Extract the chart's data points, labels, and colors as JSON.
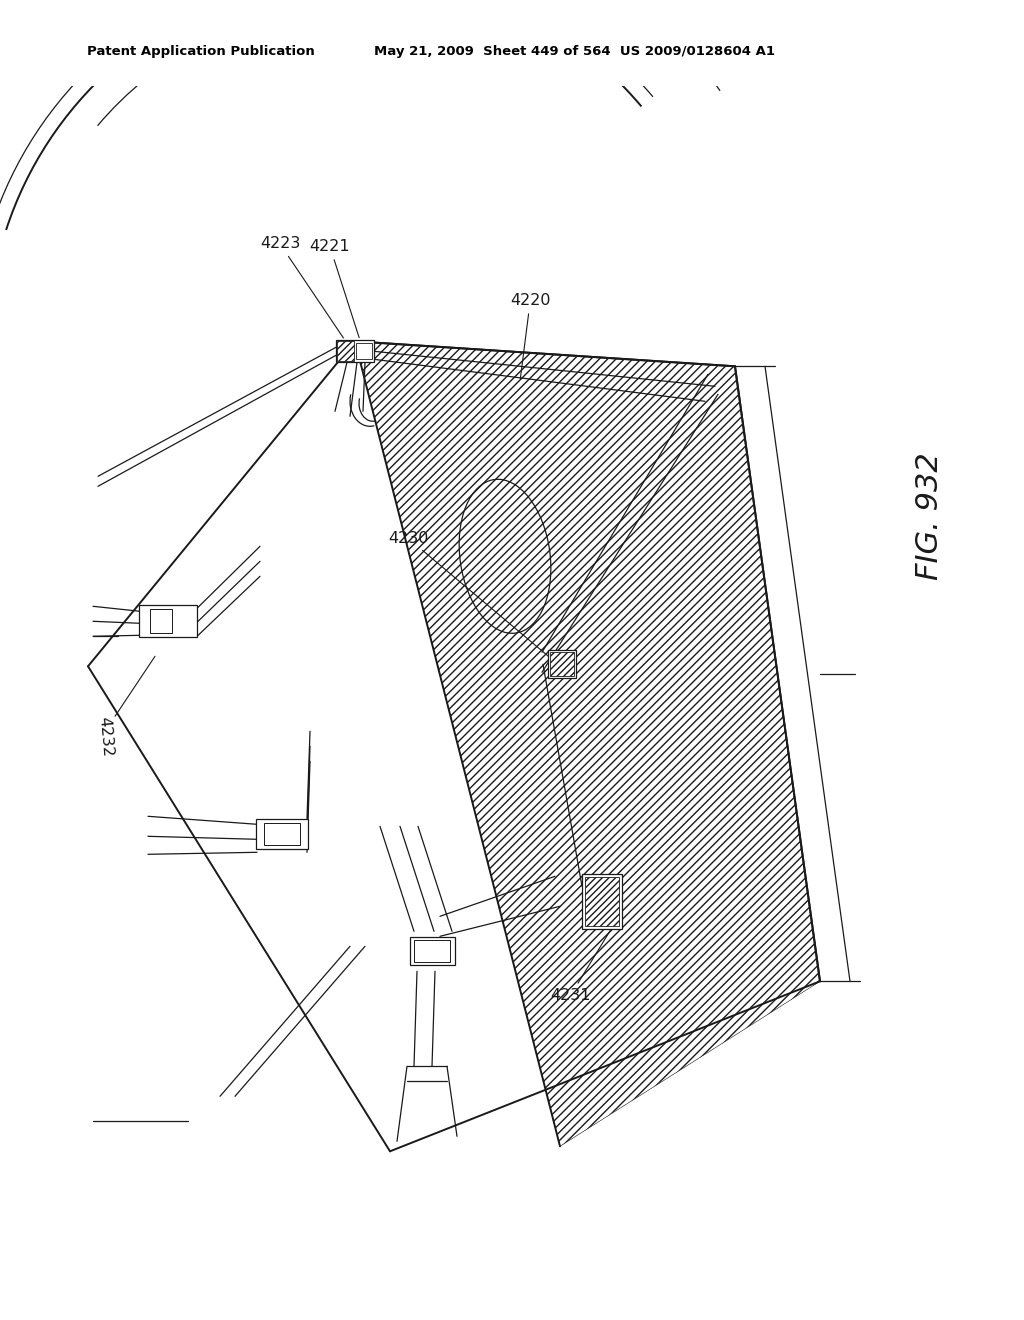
{
  "header_left": "Patent Application Publication",
  "header_middle": "May 21, 2009  Sheet 449 of 564  US 2009/0128604 A1",
  "fig_label": "FIG. 932",
  "bg": "#ffffff",
  "lc": "#1a1a1a",
  "label_4223": "4223",
  "label_4221": "4221",
  "label_4220": "4220",
  "label_4230": "4230",
  "label_4231": "4231",
  "label_4232": "4232"
}
